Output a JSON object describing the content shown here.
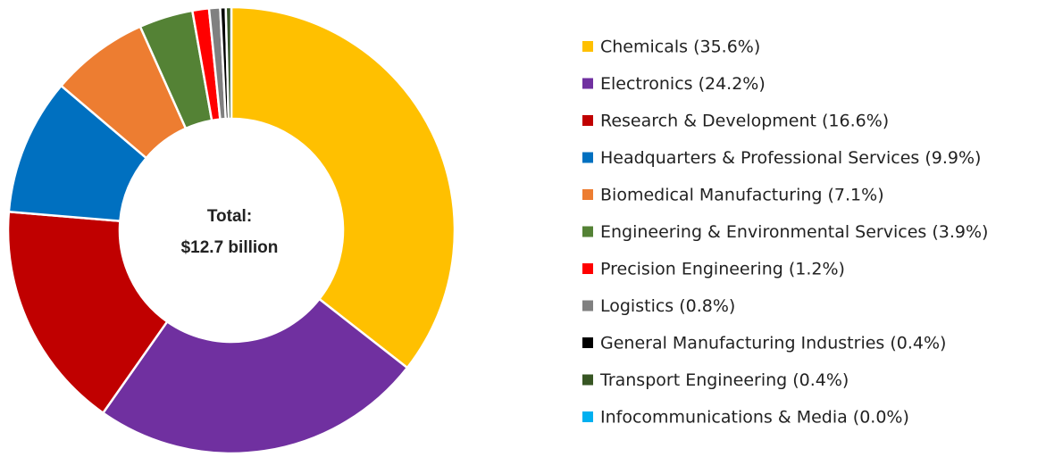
{
  "chart_data": {
    "type": "donut",
    "categories": [
      "Chemicals (35.6%)",
      "Electronics (24.2%)",
      "Research & Development (16.6%)",
      "Headquarters & Professional Services (9.9%)",
      "Biomedical Manufacturing (7.1%)",
      "Engineering & Environmental Services (3.9%)",
      "Precision Engineering (1.2%)",
      "Logistics (0.8%)",
      "General Manufacturing Industries (0.4%)",
      "Transport Engineering (0.4%)",
      "Infocommunications & Media (0.0%)"
    ],
    "values": [
      35.6,
      24.2,
      16.6,
      9.9,
      7.1,
      3.9,
      1.2,
      0.8,
      0.4,
      0.4,
      0.0
    ],
    "colors": [
      "#ffc000",
      "#7030a0",
      "#c00000",
      "#0070c0",
      "#ed7d31",
      "#548235",
      "#ff0000",
      "#808080",
      "#000000",
      "#375623",
      "#00b0f0"
    ],
    "center_label": [
      "Total:",
      "$12.7 billion"
    ],
    "legend": "right"
  }
}
